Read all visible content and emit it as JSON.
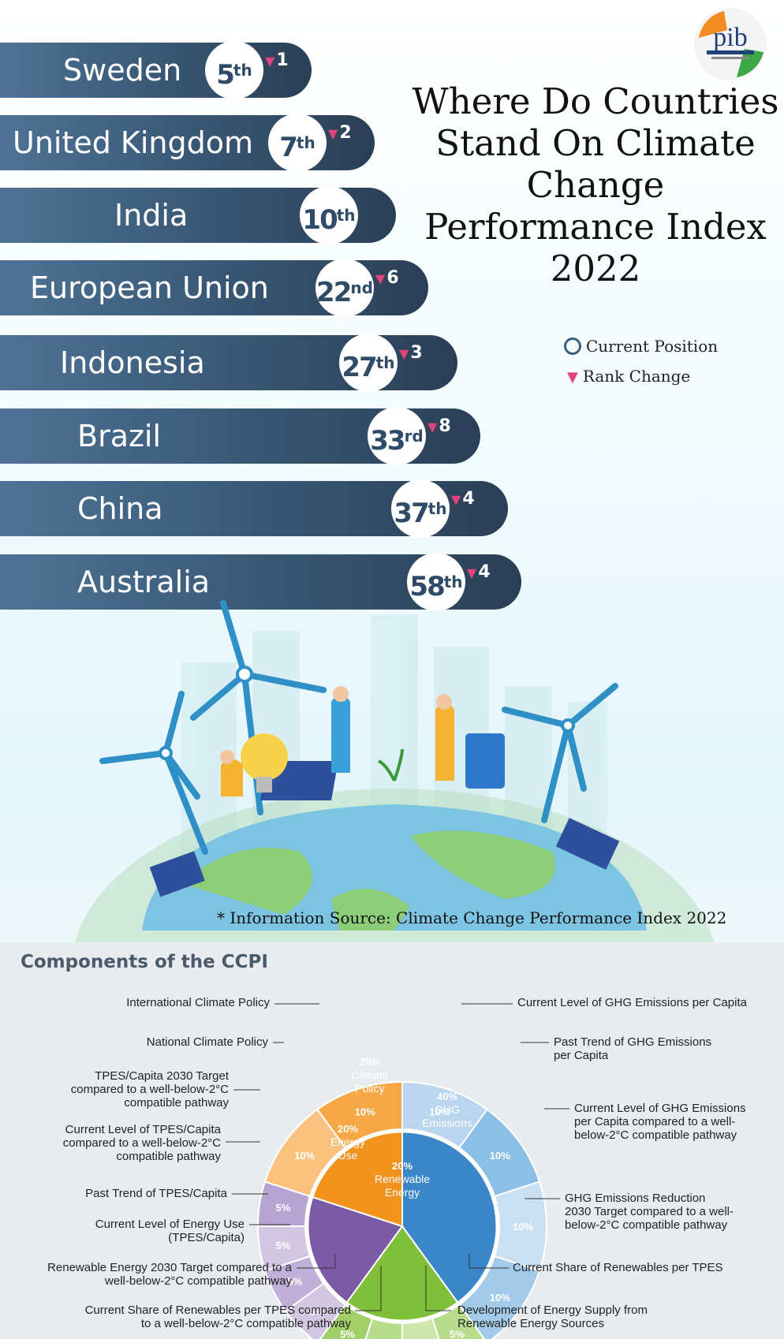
{
  "title": "Where Do Countries Stand On Climate Change Performance Index 2022",
  "logo_text": "pib",
  "legend": {
    "current": "Current Position",
    "change": "Rank Change"
  },
  "colors": {
    "bar": "#3b5b79",
    "triangle": "#e0447a",
    "ghg": "#3a86c8",
    "policy": "#f3931e",
    "energy_use": "#7b5ba6",
    "renewable": "#7fbf3a"
  },
  "rankings": [
    {
      "country": "Sweden",
      "rank": "5",
      "suffix": "th",
      "change": "1"
    },
    {
      "country": "United Kingdom",
      "rank": "7",
      "suffix": "th",
      "change": "2"
    },
    {
      "country": "India",
      "rank": "10",
      "suffix": "th",
      "change": ""
    },
    {
      "country": "European Union",
      "rank": "22",
      "suffix": "nd",
      "change": "6"
    },
    {
      "country": "Indonesia",
      "rank": "27",
      "suffix": "th",
      "change": "3"
    },
    {
      "country": "Brazil",
      "rank": "33",
      "suffix": "rd",
      "change": "8"
    },
    {
      "country": "China",
      "rank": "37",
      "suffix": "th",
      "change": "4"
    },
    {
      "country": "Australia",
      "rank": "58",
      "suffix": "th",
      "change": "4"
    }
  ],
  "source": "* Information Source: Climate Change Performance Index 2022",
  "ccpi_title": "Components of the CCPI",
  "chart_data": {
    "type": "pie",
    "title": "Components of the CCPI",
    "inner": [
      {
        "label": "40% GHG Emissions",
        "value": 40
      },
      {
        "label": "20% Renewable Energy",
        "value": 20
      },
      {
        "label": "20% Energy Use",
        "value": 20
      },
      {
        "label": "20% Climate Policy",
        "value": 20
      }
    ],
    "outer": [
      {
        "label": "Current Level of GHG Emissions per Capita",
        "value": 10
      },
      {
        "label": "Past Trend of GHG Emissions per Capita",
        "value": 10
      },
      {
        "label": "Current Level of GHG Emissions per Capita compared to a well-below-2°C compatible pathway",
        "value": 10
      },
      {
        "label": "GHG Emissions Reduction 2030 Target compared to a well-below-2°C compatible pathway",
        "value": 10
      },
      {
        "label": "Current Share of Renewables per TPES",
        "value": 5
      },
      {
        "label": "Development of Energy Supply from Renewable Energy Sources",
        "value": 5
      },
      {
        "label": "Current Share of Renewables per TPES compared to a well-below-2°C compatible pathway",
        "value": 5
      },
      {
        "label": "Renewable Energy 2030 Target compared to a well-below-2°C compatible pathway",
        "value": 5
      },
      {
        "label": "Current Level of Energy Use (TPES/Capita)",
        "value": 5
      },
      {
        "label": "Past Trend of TPES/Capita",
        "value": 5
      },
      {
        "label": "Current Level of TPES/Capita compared to a well-below-2°C compatible pathway",
        "value": 5
      },
      {
        "label": "TPES/Capita 2030 Target compared to a well-below-2°C compatible pathway",
        "value": 5
      },
      {
        "label": "National Climate Policy",
        "value": 10
      },
      {
        "label": "International Climate Policy",
        "value": 10
      }
    ]
  },
  "labels": {
    "ghg_cap": "Current Level of GHG Emissions per Capita",
    "ghg_trend": "Past Trend of GHG Emissions\nper Capita",
    "ghg_path": "Current Level of GHG Emissions\nper Capita compared to a well-\nbelow-2°C compatible pathway",
    "ghg_target": "GHG Emissions Reduction\n2030 Target compared to a well-\nbelow-2°C compatible pathway",
    "ren_share": "Current Share of Renewables per TPES",
    "ren_dev": "Development of Energy Supply from\nRenewable Energy Sources",
    "ren_share_path": "Current Share of Renewables per TPES compared\nto a well-below-2°C compatible pathway",
    "ren_target": "Renewable Energy 2030 Target compared to a\nwell-below-2°C compatible pathway",
    "eu_level": "Current Level of Energy Use\n(TPES/Capita)",
    "eu_trend": "Past Trend of TPES/Capita",
    "eu_path": "Current Level of TPES/Capita\ncompared to a well-below-2°C\ncompatible pathway",
    "eu_target": "TPES/Capita 2030 Target\ncompared to a well-below-2°C\ncompatible pathway",
    "nat_policy": "National Climate Policy",
    "int_policy": "International Climate Policy"
  },
  "pie_text": {
    "ghg_pct": "40%",
    "ghg_a": "GHG",
    "ghg_b": "Emissions",
    "ren_pct": "20%",
    "ren_a": "Renewable",
    "ren_b": "Energy",
    "eu_pct": "20%",
    "eu_a": "Energy",
    "eu_b": "Use",
    "cp_pct": "20%",
    "cp_a": "Climate",
    "cp_b": "Policy"
  }
}
